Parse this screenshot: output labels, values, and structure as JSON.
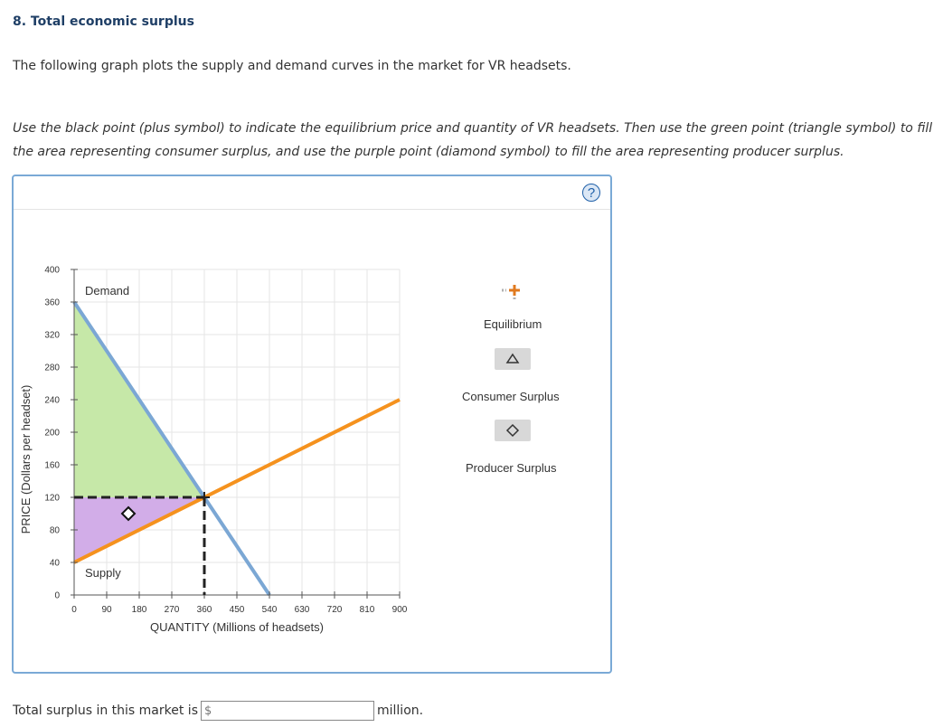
{
  "question": {
    "title": "8. Total economic surplus",
    "intro": "The following graph plots the supply and demand curves in the market for VR headsets.",
    "instructions": "Use the black point (plus symbol) to indicate the equilibrium price and quantity of VR headsets. Then use the green point (triangle symbol) to fill the area representing consumer surplus, and use the purple point (diamond symbol) to fill the area representing producer surplus."
  },
  "panel": {
    "help_symbol": "?"
  },
  "palette": {
    "equilibrium_label": "Equilibrium",
    "consumer_surplus_label": "Consumer Surplus",
    "producer_surplus_label": "Producer Surplus"
  },
  "chart_data": {
    "type": "line",
    "xlabel": "QUANTITY (Millions of headsets)",
    "ylabel": "PRICE (Dollars per headset)",
    "xlim": [
      0,
      900
    ],
    "ylim": [
      0,
      400
    ],
    "x_ticks": [
      "0",
      "90",
      "180",
      "270",
      "360",
      "450",
      "540",
      "630",
      "720",
      "810",
      "900"
    ],
    "y_ticks": [
      "0",
      "40",
      "80",
      "120",
      "160",
      "200",
      "240",
      "280",
      "320",
      "360",
      "400"
    ],
    "grid": true,
    "series": [
      {
        "name": "Demand",
        "color": "#7ba7d4",
        "points": [
          [
            0,
            360
          ],
          [
            540,
            0
          ]
        ]
      },
      {
        "name": "Supply",
        "color": "#f5921e",
        "points": [
          [
            0,
            40
          ],
          [
            900,
            240
          ]
        ]
      }
    ],
    "equilibrium": {
      "x": 360,
      "y": 120
    },
    "consumer_surplus_polygon": [
      [
        0,
        360
      ],
      [
        0,
        120
      ],
      [
        360,
        120
      ]
    ],
    "producer_surplus_polygon": [
      [
        0,
        120
      ],
      [
        0,
        40
      ],
      [
        360,
        120
      ]
    ],
    "consumer_surplus_color": "#c6e8a8",
    "producer_surplus_color": "#d2ade8",
    "triangle_marker": {
      "x": 0,
      "y": 0,
      "visible": false
    },
    "diamond_marker": {
      "x": 150,
      "y": 100
    }
  },
  "answer": {
    "prefix": "Total surplus in this market is",
    "currency": "$",
    "value": "",
    "suffix": "million."
  }
}
